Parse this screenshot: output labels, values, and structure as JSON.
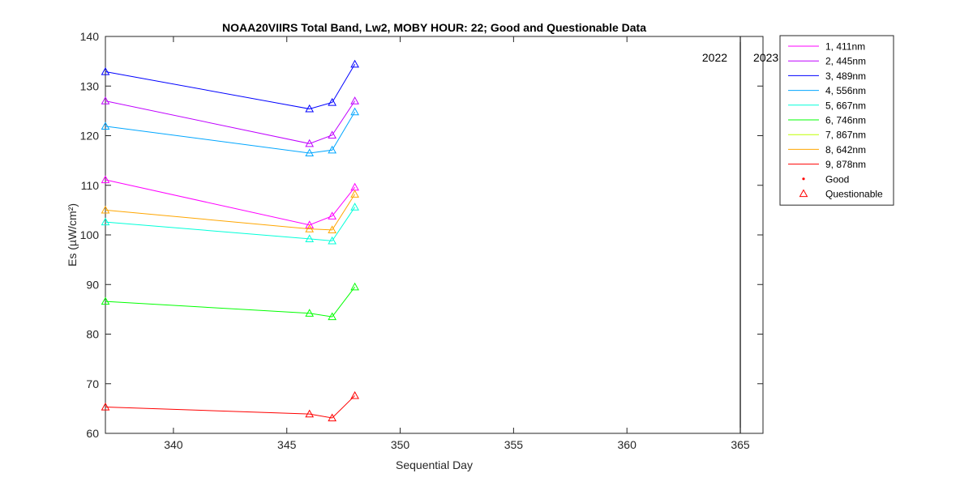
{
  "chart_data": {
    "type": "line",
    "title": "NOAA20VIIRS Total Band,  Lw2, MOBY HOUR: 22;  Good and Questionable Data",
    "xlabel": "Sequential Day",
    "ylabel": "Es (µW/cm²)",
    "xlim": [
      337,
      366
    ],
    "ylim": [
      60,
      140
    ],
    "xticks": [
      340,
      345,
      350,
      355,
      360,
      365
    ],
    "yticks": [
      60,
      70,
      80,
      90,
      100,
      110,
      120,
      130,
      140
    ],
    "grid": false,
    "legend_position": "outside-top-right",
    "x": [
      337,
      346,
      347,
      348
    ],
    "series": [
      {
        "name": "1, 411nm",
        "color": "#ff00ff",
        "values": [
          111.1,
          102.0,
          103.8,
          109.6
        ]
      },
      {
        "name": "2, 445nm",
        "color": "#bf00ff",
        "values": [
          127.0,
          118.4,
          120.1,
          127.0
        ]
      },
      {
        "name": "3, 489nm",
        "color": "#0000ff",
        "values": [
          132.9,
          125.4,
          126.7,
          134.4
        ]
      },
      {
        "name": "4, 556nm",
        "color": "#00a6ff",
        "values": [
          121.9,
          116.5,
          117.1,
          124.8
        ]
      },
      {
        "name": "5, 667nm",
        "color": "#00ffd9",
        "values": [
          102.6,
          99.2,
          98.8,
          105.6
        ]
      },
      {
        "name": "6, 746nm",
        "color": "#00ff00",
        "values": [
          86.6,
          84.2,
          83.5,
          89.5
        ]
      },
      {
        "name": "7, 867nm",
        "color": "#bfff00",
        "values": [
          null,
          null,
          null,
          null
        ]
      },
      {
        "name": "8, 642nm",
        "color": "#ffa600",
        "values": [
          105.0,
          101.2,
          101.0,
          108.2
        ]
      },
      {
        "name": "9, 878nm",
        "color": "#ff0000",
        "values": [
          65.3,
          63.9,
          63.1,
          67.6
        ]
      }
    ],
    "marker_legend": [
      {
        "label": "Good",
        "color": "#ff0000",
        "marker": "dot"
      },
      {
        "label": "Questionable",
        "color": "#ff0000",
        "marker": "triangle"
      }
    ],
    "year_divider": {
      "x": 365,
      "label_left": "2022",
      "label_right": "2023"
    }
  }
}
